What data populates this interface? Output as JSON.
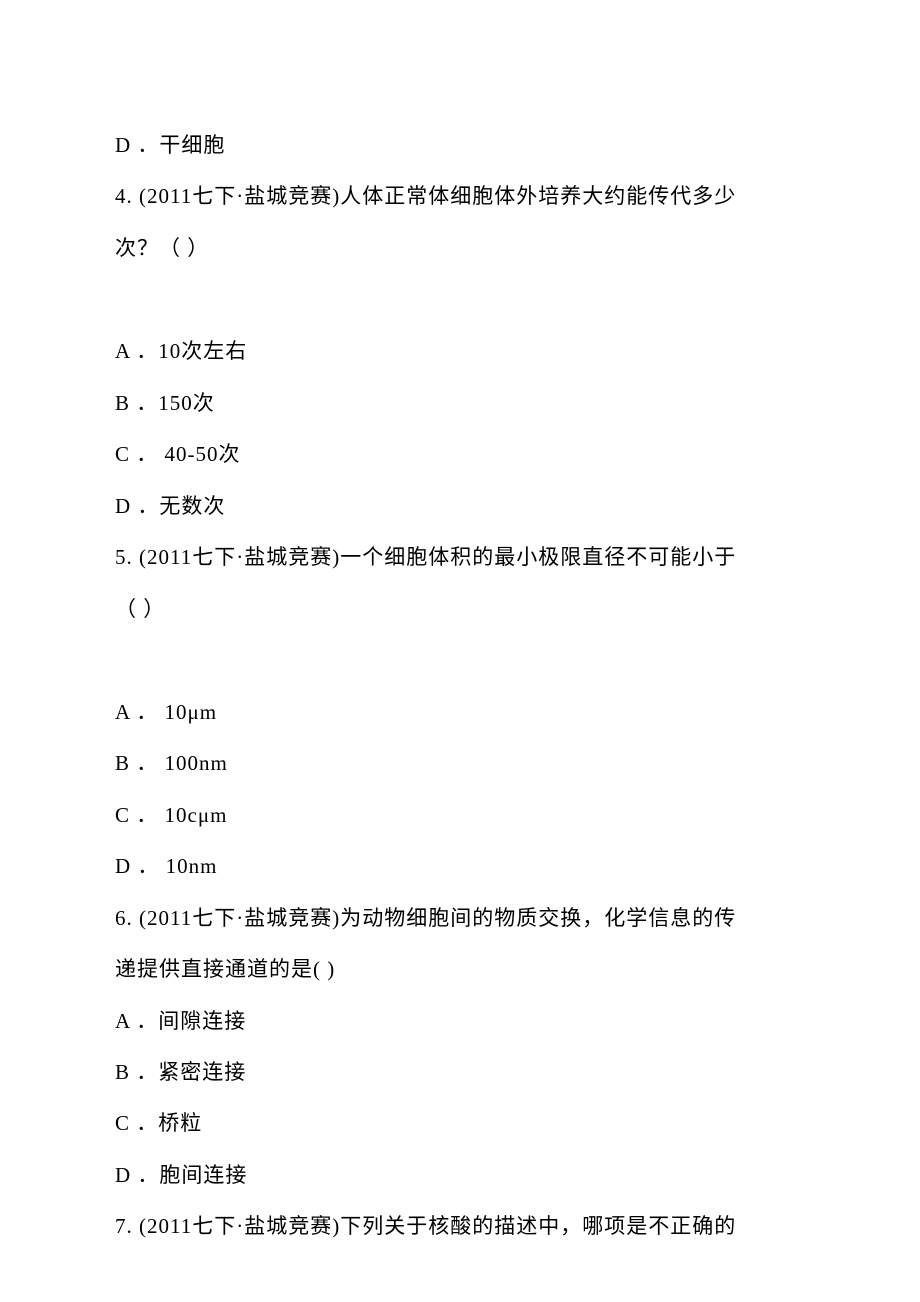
{
  "lines": {
    "l1": "D ．干细胞",
    "l2": "4. (2011七下·盐城竞赛)人体正常体细胞体外培养大约能传代多少",
    "l3": "次？（ ）",
    "l4": "A ．10次左右",
    "l5": "B ．150次",
    "l6": "C ． 40-50次",
    "l7": "D ．无数次",
    "l8": "5. (2011七下·盐城竞赛)一个细胞体积的最小极限直径不可能小于",
    "l9": "（ ）",
    "l10": "A ． 10μm",
    "l11": "B ． 100nm",
    "l12": "C ． 10cμm",
    "l13": "D ． 10nm",
    "l14": "6. (2011七下·盐城竞赛)为动物细胞间的物质交换，化学信息的传",
    "l15": "递提供直接通道的是( )",
    "l16": "A ．间隙连接",
    "l17": "B ．紧密连接",
    "l18": "C ．桥粒",
    "l19": "D ．胞间连接",
    "l20": "7. (2011七下·盐城竞赛)下列关于核酸的描述中，哪项是不正确的"
  }
}
